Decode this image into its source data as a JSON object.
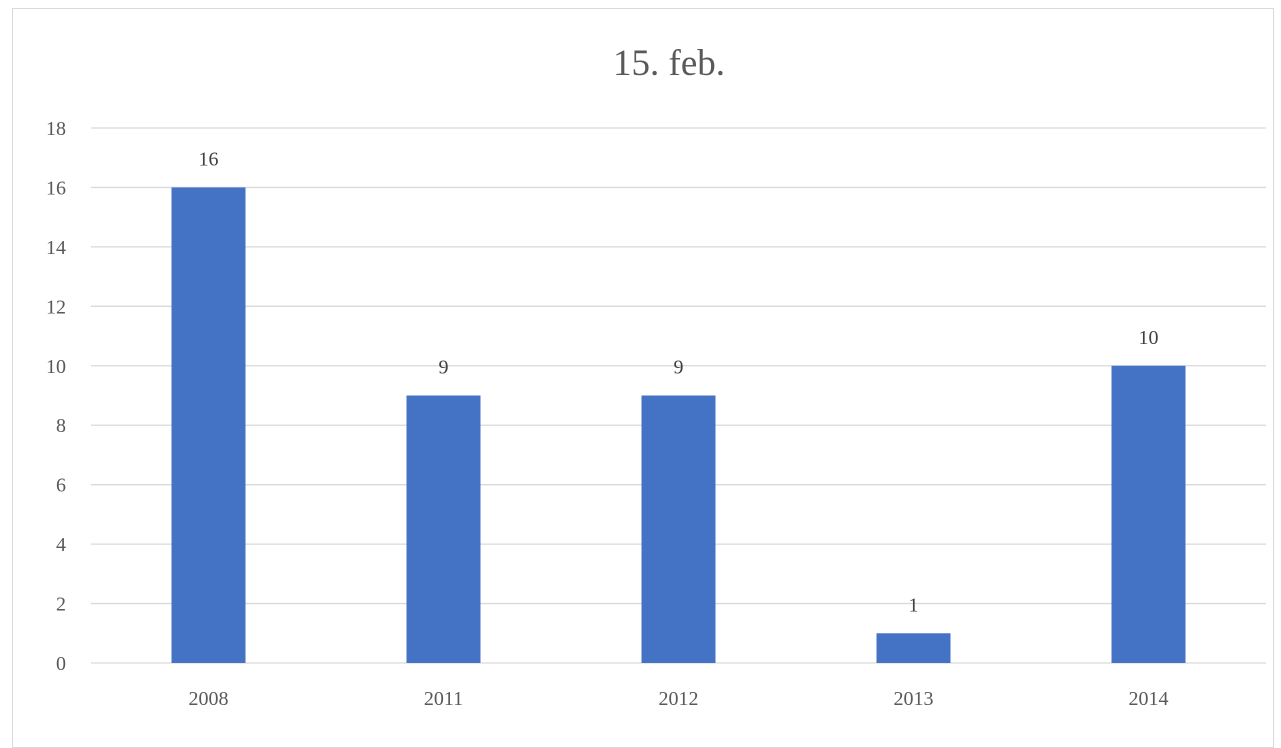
{
  "chart_data": {
    "type": "bar",
    "title": "15. feb.",
    "xlabel": "",
    "ylabel": "",
    "categories": [
      "2008",
      "2011",
      "2012",
      "2013",
      "2014"
    ],
    "values": [
      16,
      9,
      9,
      1,
      10
    ],
    "data_labels": [
      "16",
      "9",
      "9",
      "1",
      "10"
    ],
    "ylim": [
      0,
      18
    ],
    "yticks": [
      0,
      2,
      4,
      6,
      8,
      10,
      12,
      14,
      16,
      18
    ],
    "grid": true,
    "legend": "none",
    "bar_color": "#4472C4"
  }
}
